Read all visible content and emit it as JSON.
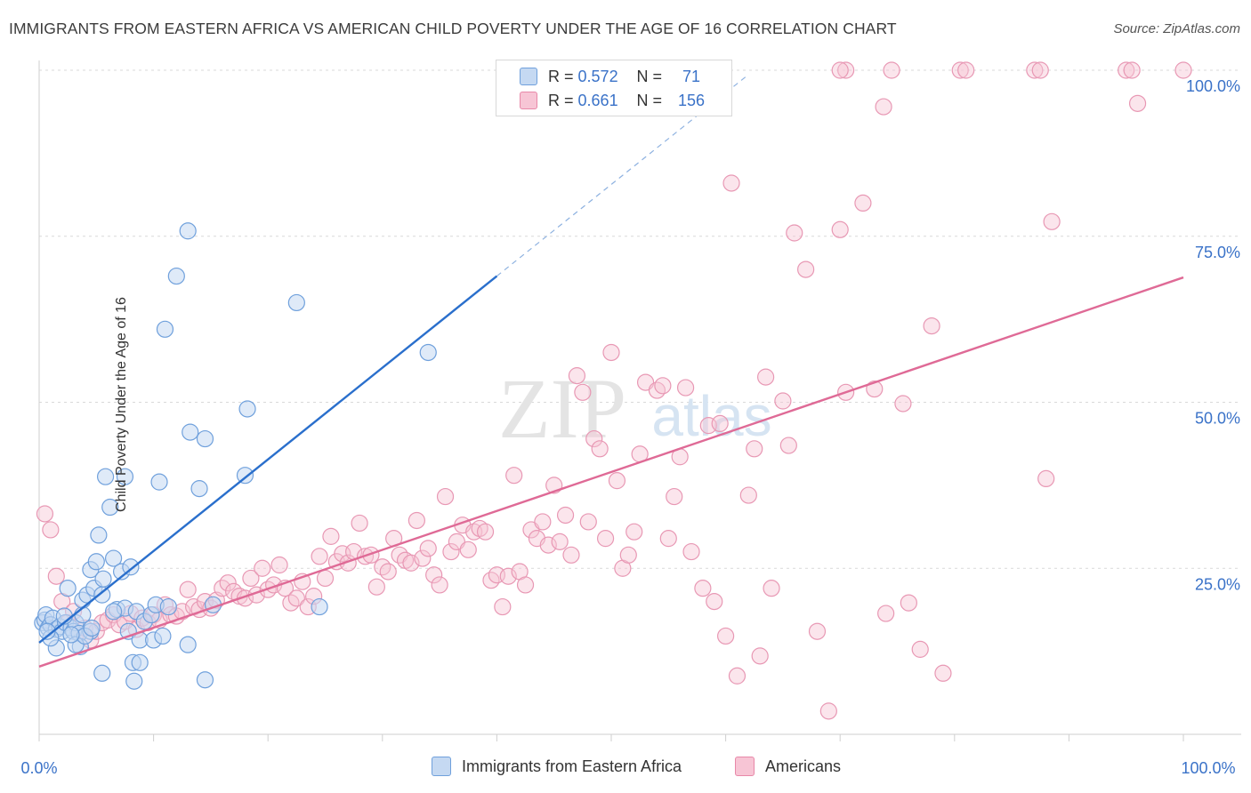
{
  "header": {
    "title": "IMMIGRANTS FROM EASTERN AFRICA VS AMERICAN CHILD POVERTY UNDER THE AGE OF 16 CORRELATION CHART",
    "source": "Source: ZipAtlas.com"
  },
  "watermark": {
    "zip": "ZIP",
    "atlas": "atlas"
  },
  "legend": {
    "r_label": "R =",
    "n_label": "N =",
    "series": [
      {
        "name": "Immigrants from Eastern Africa",
        "r": "0.572",
        "n": "71",
        "color": "#6fa0dc",
        "fill": "#c5d9f2"
      },
      {
        "name": "Americans",
        "r": "0.661",
        "n": "156",
        "color": "#e888a8",
        "fill": "#f7c5d5"
      }
    ]
  },
  "chart_data": {
    "type": "scatter",
    "title": "IMMIGRANTS FROM EASTERN AFRICA VS AMERICAN CHILD POVERTY UNDER THE AGE OF 16 CORRELATION CHART",
    "xlabel": "",
    "ylabel": "Child Poverty Under the Age of 16",
    "xlim": [
      0,
      100
    ],
    "ylim": [
      0,
      100
    ],
    "x_ticks": [
      "0.0%",
      "100.0%"
    ],
    "y_ticks": [
      {
        "value": 25,
        "label": "25.0%"
      },
      {
        "value": 50,
        "label": "50.0%"
      },
      {
        "value": 75,
        "label": "75.0%"
      },
      {
        "value": 100,
        "label": "100.0%"
      }
    ],
    "grid": "horizontal dashed",
    "legend_placement": "bottom-center",
    "series": [
      {
        "name": "Immigrants from Eastern Africa",
        "color": "#4a86d4",
        "trend": {
          "x0": 0,
          "y0": 13.8,
          "x1": 40,
          "y1": 69,
          "extends_dashed_to": [
            62,
            100
          ]
        },
        "points": [
          [
            0.3,
            16.8
          ],
          [
            0.5,
            17.2
          ],
          [
            0.8,
            16.0
          ],
          [
            0.6,
            18.0
          ],
          [
            1.0,
            16.5
          ],
          [
            1.2,
            17.5
          ],
          [
            1.5,
            15.8
          ],
          [
            1.8,
            16.2
          ],
          [
            2.0,
            15.5
          ],
          [
            1.5,
            13.0
          ],
          [
            2.3,
            16.8
          ],
          [
            2.5,
            22.0
          ],
          [
            2.8,
            16.0
          ],
          [
            3.0,
            15.5
          ],
          [
            3.2,
            16.8
          ],
          [
            3.5,
            15.2
          ],
          [
            3.8,
            18.0
          ],
          [
            3.6,
            13.2
          ],
          [
            3.8,
            20.2
          ],
          [
            4.2,
            21.0
          ],
          [
            4.5,
            15.5
          ],
          [
            4.5,
            24.8
          ],
          [
            4.8,
            22.0
          ],
          [
            5.0,
            26.0
          ],
          [
            5.2,
            30.0
          ],
          [
            5.5,
            21.0
          ],
          [
            5.6,
            23.4
          ],
          [
            5.8,
            38.8
          ],
          [
            6.2,
            34.2
          ],
          [
            6.5,
            26.5
          ],
          [
            6.8,
            18.8
          ],
          [
            7.2,
            24.5
          ],
          [
            7.5,
            19.0
          ],
          [
            7.5,
            38.8
          ],
          [
            7.8,
            15.5
          ],
          [
            8.0,
            25.2
          ],
          [
            8.2,
            10.8
          ],
          [
            8.3,
            8.0
          ],
          [
            8.5,
            18.5
          ],
          [
            8.8,
            14.2
          ],
          [
            8.8,
            10.8
          ],
          [
            9.2,
            17.0
          ],
          [
            9.8,
            18.0
          ],
          [
            10.0,
            14.2
          ],
          [
            10.2,
            19.5
          ],
          [
            10.5,
            38.0
          ],
          [
            10.8,
            14.8
          ],
          [
            11.0,
            61.0
          ],
          [
            11.3,
            19.2
          ],
          [
            12.0,
            69.0
          ],
          [
            13.0,
            75.8
          ],
          [
            13.0,
            13.5
          ],
          [
            13.2,
            45.5
          ],
          [
            14.0,
            37.0
          ],
          [
            14.5,
            44.5
          ],
          [
            15.2,
            19.5
          ],
          [
            14.5,
            8.2
          ],
          [
            18.0,
            39.0
          ],
          [
            18.2,
            49.0
          ],
          [
            22.5,
            65.0
          ],
          [
            24.5,
            19.2
          ],
          [
            34.0,
            57.5
          ],
          [
            5.5,
            9.2
          ],
          [
            1.0,
            14.5
          ],
          [
            2.2,
            17.8
          ],
          [
            3.2,
            13.5
          ],
          [
            4.0,
            14.8
          ],
          [
            6.5,
            18.5
          ],
          [
            0.7,
            15.5
          ],
          [
            2.8,
            15.0
          ],
          [
            4.6,
            16.0
          ]
        ]
      },
      {
        "name": "Americans",
        "color": "#e06a96",
        "trend": {
          "x0": 0,
          "y0": 10.2,
          "x1": 100,
          "y1": 68.8
        },
        "points": [
          [
            0.5,
            33.2
          ],
          [
            1.0,
            30.8
          ],
          [
            1.5,
            23.8
          ],
          [
            2.0,
            20.0
          ],
          [
            2.5,
            16.8
          ],
          [
            3.0,
            18.5
          ],
          [
            3.5,
            15.2
          ],
          [
            4.0,
            16.0
          ],
          [
            4.5,
            14.2
          ],
          [
            5.0,
            15.5
          ],
          [
            5.5,
            16.8
          ],
          [
            6.0,
            17.2
          ],
          [
            6.5,
            18.0
          ],
          [
            7.0,
            16.5
          ],
          [
            7.5,
            17.0
          ],
          [
            8.0,
            18.2
          ],
          [
            8.5,
            15.8
          ],
          [
            9.0,
            17.5
          ],
          [
            9.5,
            16.8
          ],
          [
            10.0,
            18.0
          ],
          [
            10.5,
            17.2
          ],
          [
            11.0,
            19.5
          ],
          [
            11.5,
            18.0
          ],
          [
            12.0,
            17.8
          ],
          [
            12.5,
            18.5
          ],
          [
            13.0,
            21.8
          ],
          [
            13.5,
            19.2
          ],
          [
            14.0,
            18.8
          ],
          [
            14.5,
            20.0
          ],
          [
            15.0,
            19.0
          ],
          [
            15.5,
            20.2
          ],
          [
            16.0,
            22.0
          ],
          [
            16.5,
            22.8
          ],
          [
            17.0,
            21.5
          ],
          [
            17.5,
            20.8
          ],
          [
            18.0,
            20.5
          ],
          [
            18.5,
            23.5
          ],
          [
            19.0,
            21.0
          ],
          [
            19.5,
            25.0
          ],
          [
            20.0,
            21.8
          ],
          [
            20.5,
            22.5
          ],
          [
            21.0,
            25.5
          ],
          [
            21.5,
            22.0
          ],
          [
            22.0,
            19.8
          ],
          [
            22.5,
            20.5
          ],
          [
            23.0,
            23.0
          ],
          [
            23.5,
            19.2
          ],
          [
            24.0,
            20.8
          ],
          [
            24.5,
            26.8
          ],
          [
            25.0,
            23.5
          ],
          [
            25.5,
            29.8
          ],
          [
            26.0,
            26.0
          ],
          [
            26.5,
            27.2
          ],
          [
            27.0,
            25.8
          ],
          [
            27.5,
            27.5
          ],
          [
            28.0,
            31.8
          ],
          [
            28.5,
            26.8
          ],
          [
            29.0,
            27.0
          ],
          [
            29.5,
            22.2
          ],
          [
            30.0,
            25.2
          ],
          [
            30.5,
            24.5
          ],
          [
            31.0,
            29.5
          ],
          [
            31.5,
            27.0
          ],
          [
            32.0,
            26.2
          ],
          [
            32.5,
            25.8
          ],
          [
            33.0,
            32.2
          ],
          [
            33.5,
            26.5
          ],
          [
            34.0,
            28.0
          ],
          [
            34.5,
            24.0
          ],
          [
            35.0,
            22.5
          ],
          [
            35.5,
            35.8
          ],
          [
            36.0,
            27.5
          ],
          [
            36.5,
            29.0
          ],
          [
            37.0,
            31.5
          ],
          [
            37.5,
            27.8
          ],
          [
            38.0,
            30.5
          ],
          [
            38.5,
            31.0
          ],
          [
            39.0,
            30.5
          ],
          [
            39.5,
            23.2
          ],
          [
            40.0,
            24.0
          ],
          [
            40.5,
            19.2
          ],
          [
            41.0,
            23.8
          ],
          [
            41.5,
            39.0
          ],
          [
            42.0,
            24.5
          ],
          [
            42.5,
            22.5
          ],
          [
            43.0,
            30.8
          ],
          [
            43.5,
            29.5
          ],
          [
            44.0,
            32.0
          ],
          [
            44.5,
            28.5
          ],
          [
            45.0,
            37.5
          ],
          [
            45.5,
            29.0
          ],
          [
            46.0,
            33.0
          ],
          [
            46.5,
            27.0
          ],
          [
            47.0,
            54.0
          ],
          [
            47.5,
            51.5
          ],
          [
            48.0,
            32.0
          ],
          [
            48.5,
            44.5
          ],
          [
            49.0,
            43.0
          ],
          [
            49.5,
            29.5
          ],
          [
            50.0,
            57.5
          ],
          [
            50.5,
            38.2
          ],
          [
            51.0,
            25.0
          ],
          [
            51.5,
            27.0
          ],
          [
            52.0,
            30.5
          ],
          [
            52.5,
            42.2
          ],
          [
            53.0,
            53.0
          ],
          [
            54.0,
            51.8
          ],
          [
            54.5,
            52.5
          ],
          [
            55.0,
            29.5
          ],
          [
            55.5,
            35.8
          ],
          [
            56.0,
            41.8
          ],
          [
            56.5,
            52.2
          ],
          [
            57.0,
            27.5
          ],
          [
            58.0,
            22.0
          ],
          [
            58.5,
            46.5
          ],
          [
            59.0,
            20.0
          ],
          [
            59.5,
            46.8
          ],
          [
            60.0,
            14.8
          ],
          [
            60.5,
            83.0
          ],
          [
            61.0,
            8.8
          ],
          [
            62.0,
            36.0
          ],
          [
            62.5,
            43.0
          ],
          [
            63.0,
            11.8
          ],
          [
            63.5,
            53.8
          ],
          [
            64.0,
            22.0
          ],
          [
            65.0,
            50.2
          ],
          [
            65.5,
            43.5
          ],
          [
            67.0,
            70.0
          ],
          [
            68.0,
            15.5
          ],
          [
            69.0,
            3.5
          ],
          [
            70.0,
            76.0
          ],
          [
            70.5,
            51.5
          ],
          [
            72.0,
            80.0
          ],
          [
            73.0,
            52.0
          ],
          [
            74.0,
            18.2
          ],
          [
            75.5,
            49.8
          ],
          [
            76.0,
            19.8
          ],
          [
            77.0,
            12.8
          ],
          [
            78.0,
            61.5
          ],
          [
            79.0,
            9.2
          ],
          [
            80.5,
            100
          ],
          [
            81.0,
            100
          ],
          [
            87.0,
            100
          ],
          [
            87.5,
            100
          ],
          [
            88.0,
            38.5
          ],
          [
            88.5,
            77.2
          ],
          [
            95.0,
            100
          ],
          [
            95.5,
            100
          ],
          [
            96.0,
            95.0
          ],
          [
            100,
            100
          ],
          [
            70.5,
            100
          ],
          [
            74.5,
            100
          ],
          [
            59.5,
            95.0
          ],
          [
            73.8,
            94.5
          ],
          [
            66.0,
            75.5
          ],
          [
            70.0,
            100
          ]
        ]
      }
    ]
  },
  "bottom_axis": {
    "left_label": "0.0%",
    "right_label": "100.0%"
  }
}
